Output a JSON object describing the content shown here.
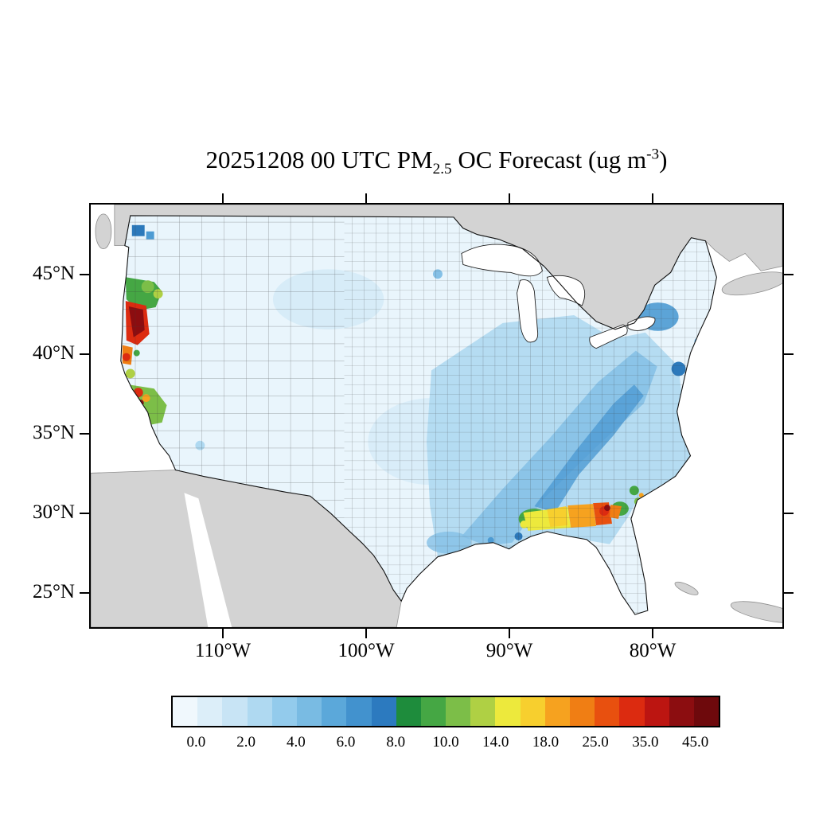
{
  "title": {
    "part1": "20251208 00 UTC PM",
    "sub": "2.5",
    "part2": " OC Forecast (ug m",
    "sup": "-3",
    "part3": ")"
  },
  "axes": {
    "lat_ticks": [
      "45°N",
      "40°N",
      "35°N",
      "30°N",
      "25°N"
    ],
    "lon_ticks": [
      "110°W",
      "100°W",
      "90°W",
      "80°W"
    ]
  },
  "colorbar": {
    "labels": [
      "0.0",
      "2.0",
      "4.0",
      "6.0",
      "8.0",
      "10.0",
      "14.0",
      "18.0",
      "25.0",
      "35.0",
      "45.0"
    ],
    "colors": [
      "#F0F8FD",
      "#DCEEF9",
      "#C8E4F5",
      "#AFD9F1",
      "#93CBEC",
      "#79BBE3",
      "#5BA8DA",
      "#4292CE",
      "#2C7ABF",
      "#1E8C3C",
      "#45A744",
      "#7CBE48",
      "#AFD044",
      "#EDE93C",
      "#F7CF2E",
      "#F6A21F",
      "#F07E14",
      "#E8500F",
      "#DC2B10",
      "#BC1511",
      "#8C0D10",
      "#6E090C"
    ]
  },
  "map_colors": {
    "ocean": "#FFFFFF",
    "land": "#D3D3D3",
    "base": "#E9F5FC",
    "blue_light": "#CFE8F7",
    "blue_soft": "#AFD9F1",
    "blue_mid": "#84C0E6",
    "blue_deep": "#4D9BD3",
    "blue_dark": "#2C79BB",
    "green": "#45A744",
    "green_light": "#7CBE48",
    "yellow_green": "#AFD044",
    "yellow": "#EDE93C",
    "gold": "#F7CF2E",
    "orange": "#F6A21F",
    "orange_deep": "#F07E14",
    "red_orange": "#E8500F",
    "red": "#DC2B10",
    "maroon": "#8C0D10",
    "lake": "#FFFFFF"
  },
  "chart_data": {
    "type": "choropleth",
    "title": "20251208 00 UTC PM2.5 OC Forecast (ug m-3)",
    "forecast_datetime": "20251208 00 UTC",
    "variable": "PM2.5 organic carbon (OC)",
    "units": "ug m-3",
    "region": "Contiguous United States, county-level fill",
    "colorbar_levels": [
      0.0,
      2.0,
      4.0,
      6.0,
      8.0,
      10.0,
      14.0,
      18.0,
      25.0,
      35.0,
      45.0
    ],
    "lat_ticks_deg_n": [
      25,
      30,
      35,
      40,
      45
    ],
    "lon_ticks_deg_w": [
      110,
      100,
      90,
      80
    ],
    "legend_position": "bottom",
    "hotspots": [
      {
        "area": "Southwest Oregon coast",
        "approx_value": "35 to >45 (dark red core with red/orange fringe)"
      },
      {
        "area": "Northern California / San Francisco Bay",
        "approx_value": "8-35 (green region with red and orange spots)"
      },
      {
        "area": "Florida Panhandle / southern Alabama-Georgia",
        "approx_value": "14-45 (yellow-orange-red band, small dark red spot)"
      },
      {
        "area": "Georgia coast near Savannah",
        "approx_value": "8-14 (green spots)"
      },
      {
        "area": "Eastern US (Southeast, Appalachia, Northeast corridor)",
        "approx_value": "2-6 (light to medium blue)"
      },
      {
        "area": "Great Plains and interior West",
        "approx_value": "0-2 (palest blue)"
      },
      {
        "area": "Seattle / Puget Sound and NYC metro",
        "approx_value": "4-8 (darker blue urban spots)"
      }
    ]
  }
}
